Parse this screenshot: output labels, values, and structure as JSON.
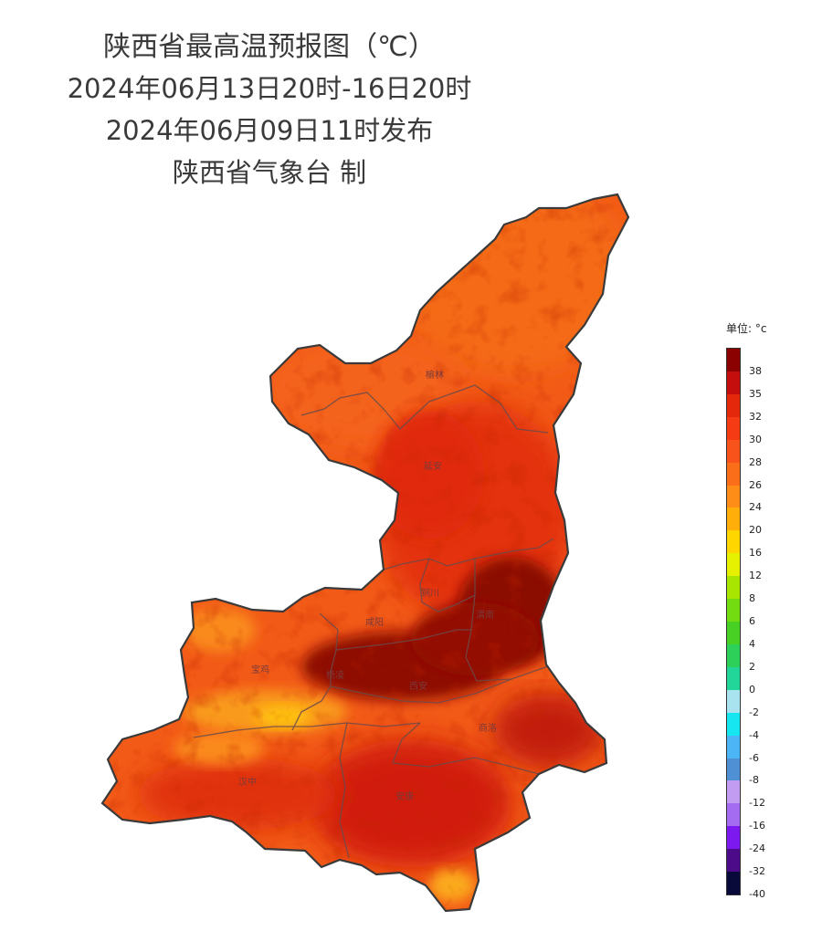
{
  "title": {
    "line1": "陕西省最高温预报图（℃）",
    "line2": "2024年06月13日20时-16日20时",
    "line3": "2024年06月09日11时发布",
    "line4": "陕西省气象台 制"
  },
  "legend": {
    "unit_label": "单位: °c",
    "labels": [
      "38",
      "35",
      "32",
      "30",
      "28",
      "26",
      "24",
      "20",
      "16",
      "12",
      "8",
      "6",
      "4",
      "2",
      "0",
      "-2",
      "-4",
      "-6",
      "-8",
      "-12",
      "-16",
      "-24",
      "-32",
      "-40"
    ],
    "colors": [
      "#8b0000",
      "#c40e0e",
      "#e3280c",
      "#f43b14",
      "#f7531a",
      "#fb6e19",
      "#fd8d17",
      "#ffae0a",
      "#ffd600",
      "#e5f100",
      "#a8e500",
      "#72dc10",
      "#48d024",
      "#2dd15a",
      "#22d699",
      "#a9e3ef",
      "#15e6ef",
      "#4cb5f5",
      "#4f8fd3",
      "#c19cf0",
      "#a46df1",
      "#7b19ef",
      "#4c0b88",
      "#0a0a3a"
    ]
  },
  "cities": [
    {
      "name": "榆林"
    },
    {
      "name": "延安"
    },
    {
      "name": "铜川"
    },
    {
      "name": "渭南"
    },
    {
      "name": "咸阳"
    },
    {
      "name": "宝鸡"
    },
    {
      "name": "杨凌"
    },
    {
      "name": "西安"
    },
    {
      "name": "商洛"
    },
    {
      "name": "汉中"
    },
    {
      "name": "安康"
    }
  ]
}
